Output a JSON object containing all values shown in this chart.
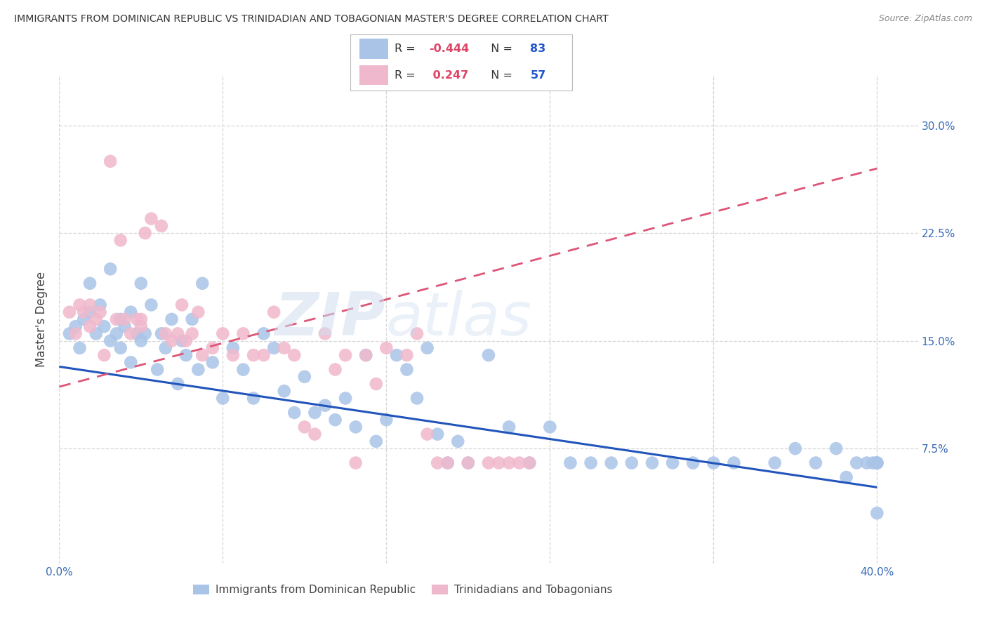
{
  "title": "IMMIGRANTS FROM DOMINICAN REPUBLIC VS TRINIDADIAN AND TOBAGONIAN MASTER'S DEGREE CORRELATION CHART",
  "source": "Source: ZipAtlas.com",
  "ylabel": "Master's Degree",
  "xlim": [
    0.0,
    0.42
  ],
  "ylim": [
    -0.005,
    0.335
  ],
  "yticks": [
    0.075,
    0.15,
    0.225,
    0.3
  ],
  "ytick_labels": [
    "7.5%",
    "15.0%",
    "22.5%",
    "30.0%"
  ],
  "xtick_left_label": "0.0%",
  "xtick_right_label": "40.0%",
  "blue_color": "#aac4e8",
  "pink_color": "#f0b8cc",
  "blue_line_color": "#2255bb",
  "pink_line_color": "#dd5577",
  "legend_r_color": "#dd4466",
  "legend_n_color": "#2255cc",
  "legend_text_color": "#333333",
  "axis_color": "#3a6ab5",
  "watermark": "ZIPatlas",
  "title_color": "#333333",
  "source_color": "#888888",
  "bottom_label_blue": "Immigrants from Dominican Republic",
  "bottom_label_pink": "Trinidadians and Tobagonians",
  "grid_color": "#cccccc",
  "blue_x": [
    0.005,
    0.008,
    0.01,
    0.012,
    0.015,
    0.015,
    0.018,
    0.02,
    0.022,
    0.025,
    0.025,
    0.028,
    0.03,
    0.03,
    0.032,
    0.035,
    0.035,
    0.038,
    0.04,
    0.04,
    0.042,
    0.045,
    0.048,
    0.05,
    0.052,
    0.055,
    0.058,
    0.06,
    0.062,
    0.065,
    0.068,
    0.07,
    0.075,
    0.08,
    0.085,
    0.09,
    0.095,
    0.1,
    0.105,
    0.11,
    0.115,
    0.12,
    0.125,
    0.13,
    0.135,
    0.14,
    0.145,
    0.15,
    0.155,
    0.16,
    0.165,
    0.17,
    0.175,
    0.18,
    0.185,
    0.19,
    0.195,
    0.2,
    0.21,
    0.22,
    0.23,
    0.24,
    0.25,
    0.26,
    0.27,
    0.28,
    0.29,
    0.3,
    0.31,
    0.32,
    0.33,
    0.35,
    0.36,
    0.37,
    0.38,
    0.385,
    0.39,
    0.395,
    0.398,
    0.4,
    0.4,
    0.4,
    0.4
  ],
  "blue_y": [
    0.155,
    0.16,
    0.145,
    0.165,
    0.17,
    0.19,
    0.155,
    0.175,
    0.16,
    0.15,
    0.2,
    0.155,
    0.145,
    0.165,
    0.16,
    0.135,
    0.17,
    0.155,
    0.19,
    0.15,
    0.155,
    0.175,
    0.13,
    0.155,
    0.145,
    0.165,
    0.12,
    0.15,
    0.14,
    0.165,
    0.13,
    0.19,
    0.135,
    0.11,
    0.145,
    0.13,
    0.11,
    0.155,
    0.145,
    0.115,
    0.1,
    0.125,
    0.1,
    0.105,
    0.095,
    0.11,
    0.09,
    0.14,
    0.08,
    0.095,
    0.14,
    0.13,
    0.11,
    0.145,
    0.085,
    0.065,
    0.08,
    0.065,
    0.14,
    0.09,
    0.065,
    0.09,
    0.065,
    0.065,
    0.065,
    0.065,
    0.065,
    0.065,
    0.065,
    0.065,
    0.065,
    0.065,
    0.075,
    0.065,
    0.075,
    0.055,
    0.065,
    0.065,
    0.065,
    0.03,
    0.065,
    0.065,
    0.065
  ],
  "pink_x": [
    0.005,
    0.008,
    0.01,
    0.012,
    0.015,
    0.015,
    0.018,
    0.02,
    0.022,
    0.025,
    0.028,
    0.03,
    0.032,
    0.035,
    0.038,
    0.04,
    0.04,
    0.042,
    0.045,
    0.05,
    0.052,
    0.055,
    0.058,
    0.06,
    0.062,
    0.065,
    0.068,
    0.07,
    0.075,
    0.08,
    0.085,
    0.09,
    0.095,
    0.1,
    0.105,
    0.11,
    0.115,
    0.12,
    0.125,
    0.13,
    0.135,
    0.14,
    0.145,
    0.15,
    0.155,
    0.16,
    0.17,
    0.175,
    0.18,
    0.185,
    0.19,
    0.2,
    0.21,
    0.215,
    0.22,
    0.225,
    0.23
  ],
  "pink_y": [
    0.17,
    0.155,
    0.175,
    0.17,
    0.175,
    0.16,
    0.165,
    0.17,
    0.14,
    0.275,
    0.165,
    0.22,
    0.165,
    0.155,
    0.165,
    0.16,
    0.165,
    0.225,
    0.235,
    0.23,
    0.155,
    0.15,
    0.155,
    0.175,
    0.15,
    0.155,
    0.17,
    0.14,
    0.145,
    0.155,
    0.14,
    0.155,
    0.14,
    0.14,
    0.17,
    0.145,
    0.14,
    0.09,
    0.085,
    0.155,
    0.13,
    0.14,
    0.065,
    0.14,
    0.12,
    0.145,
    0.14,
    0.155,
    0.085,
    0.065,
    0.065,
    0.065,
    0.065,
    0.065,
    0.065,
    0.065,
    0.065
  ],
  "blue_line_x0": 0.0,
  "blue_line_x1": 0.4,
  "blue_line_y0": 0.132,
  "blue_line_y1": 0.048,
  "pink_line_x0": 0.0,
  "pink_line_x1": 0.4,
  "pink_line_y0": 0.118,
  "pink_line_y1": 0.27
}
